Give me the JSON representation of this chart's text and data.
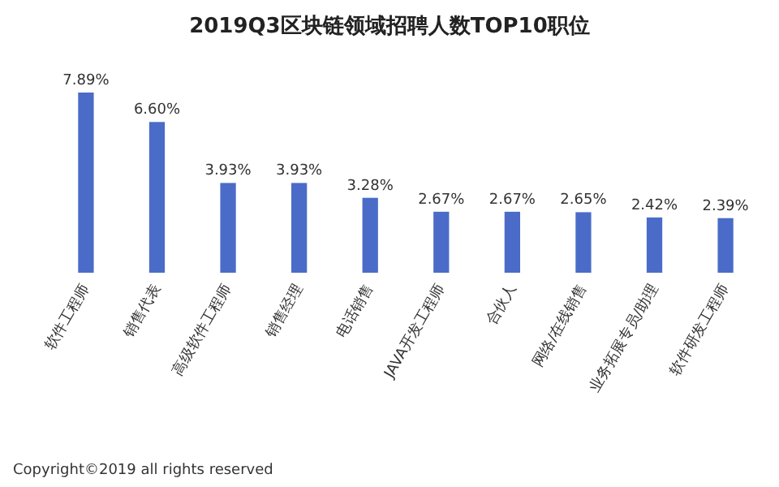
{
  "chart_data": {
    "type": "bar",
    "title": "2019Q3区块链领域招聘人数TOP10职位",
    "categories": [
      "软件工程师",
      "销售代表",
      "高级软件工程师",
      "销售经理",
      "电话销售",
      "JAVA开发工程师",
      "合伙人",
      "网络/在线销售",
      "业务拓展专员/助理",
      "软件研发工程师"
    ],
    "values": [
      7.89,
      6.6,
      3.93,
      3.93,
      3.28,
      2.67,
      2.67,
      2.65,
      2.42,
      2.39
    ],
    "value_labels": [
      "7.89%",
      "6.60%",
      "3.93%",
      "3.93%",
      "3.28%",
      "2.67%",
      "2.67%",
      "2.65%",
      "2.42%",
      "2.39%"
    ],
    "color": "#4a6cc8",
    "annotations": [
      "Copyright©2019 all rights reserved"
    ]
  }
}
